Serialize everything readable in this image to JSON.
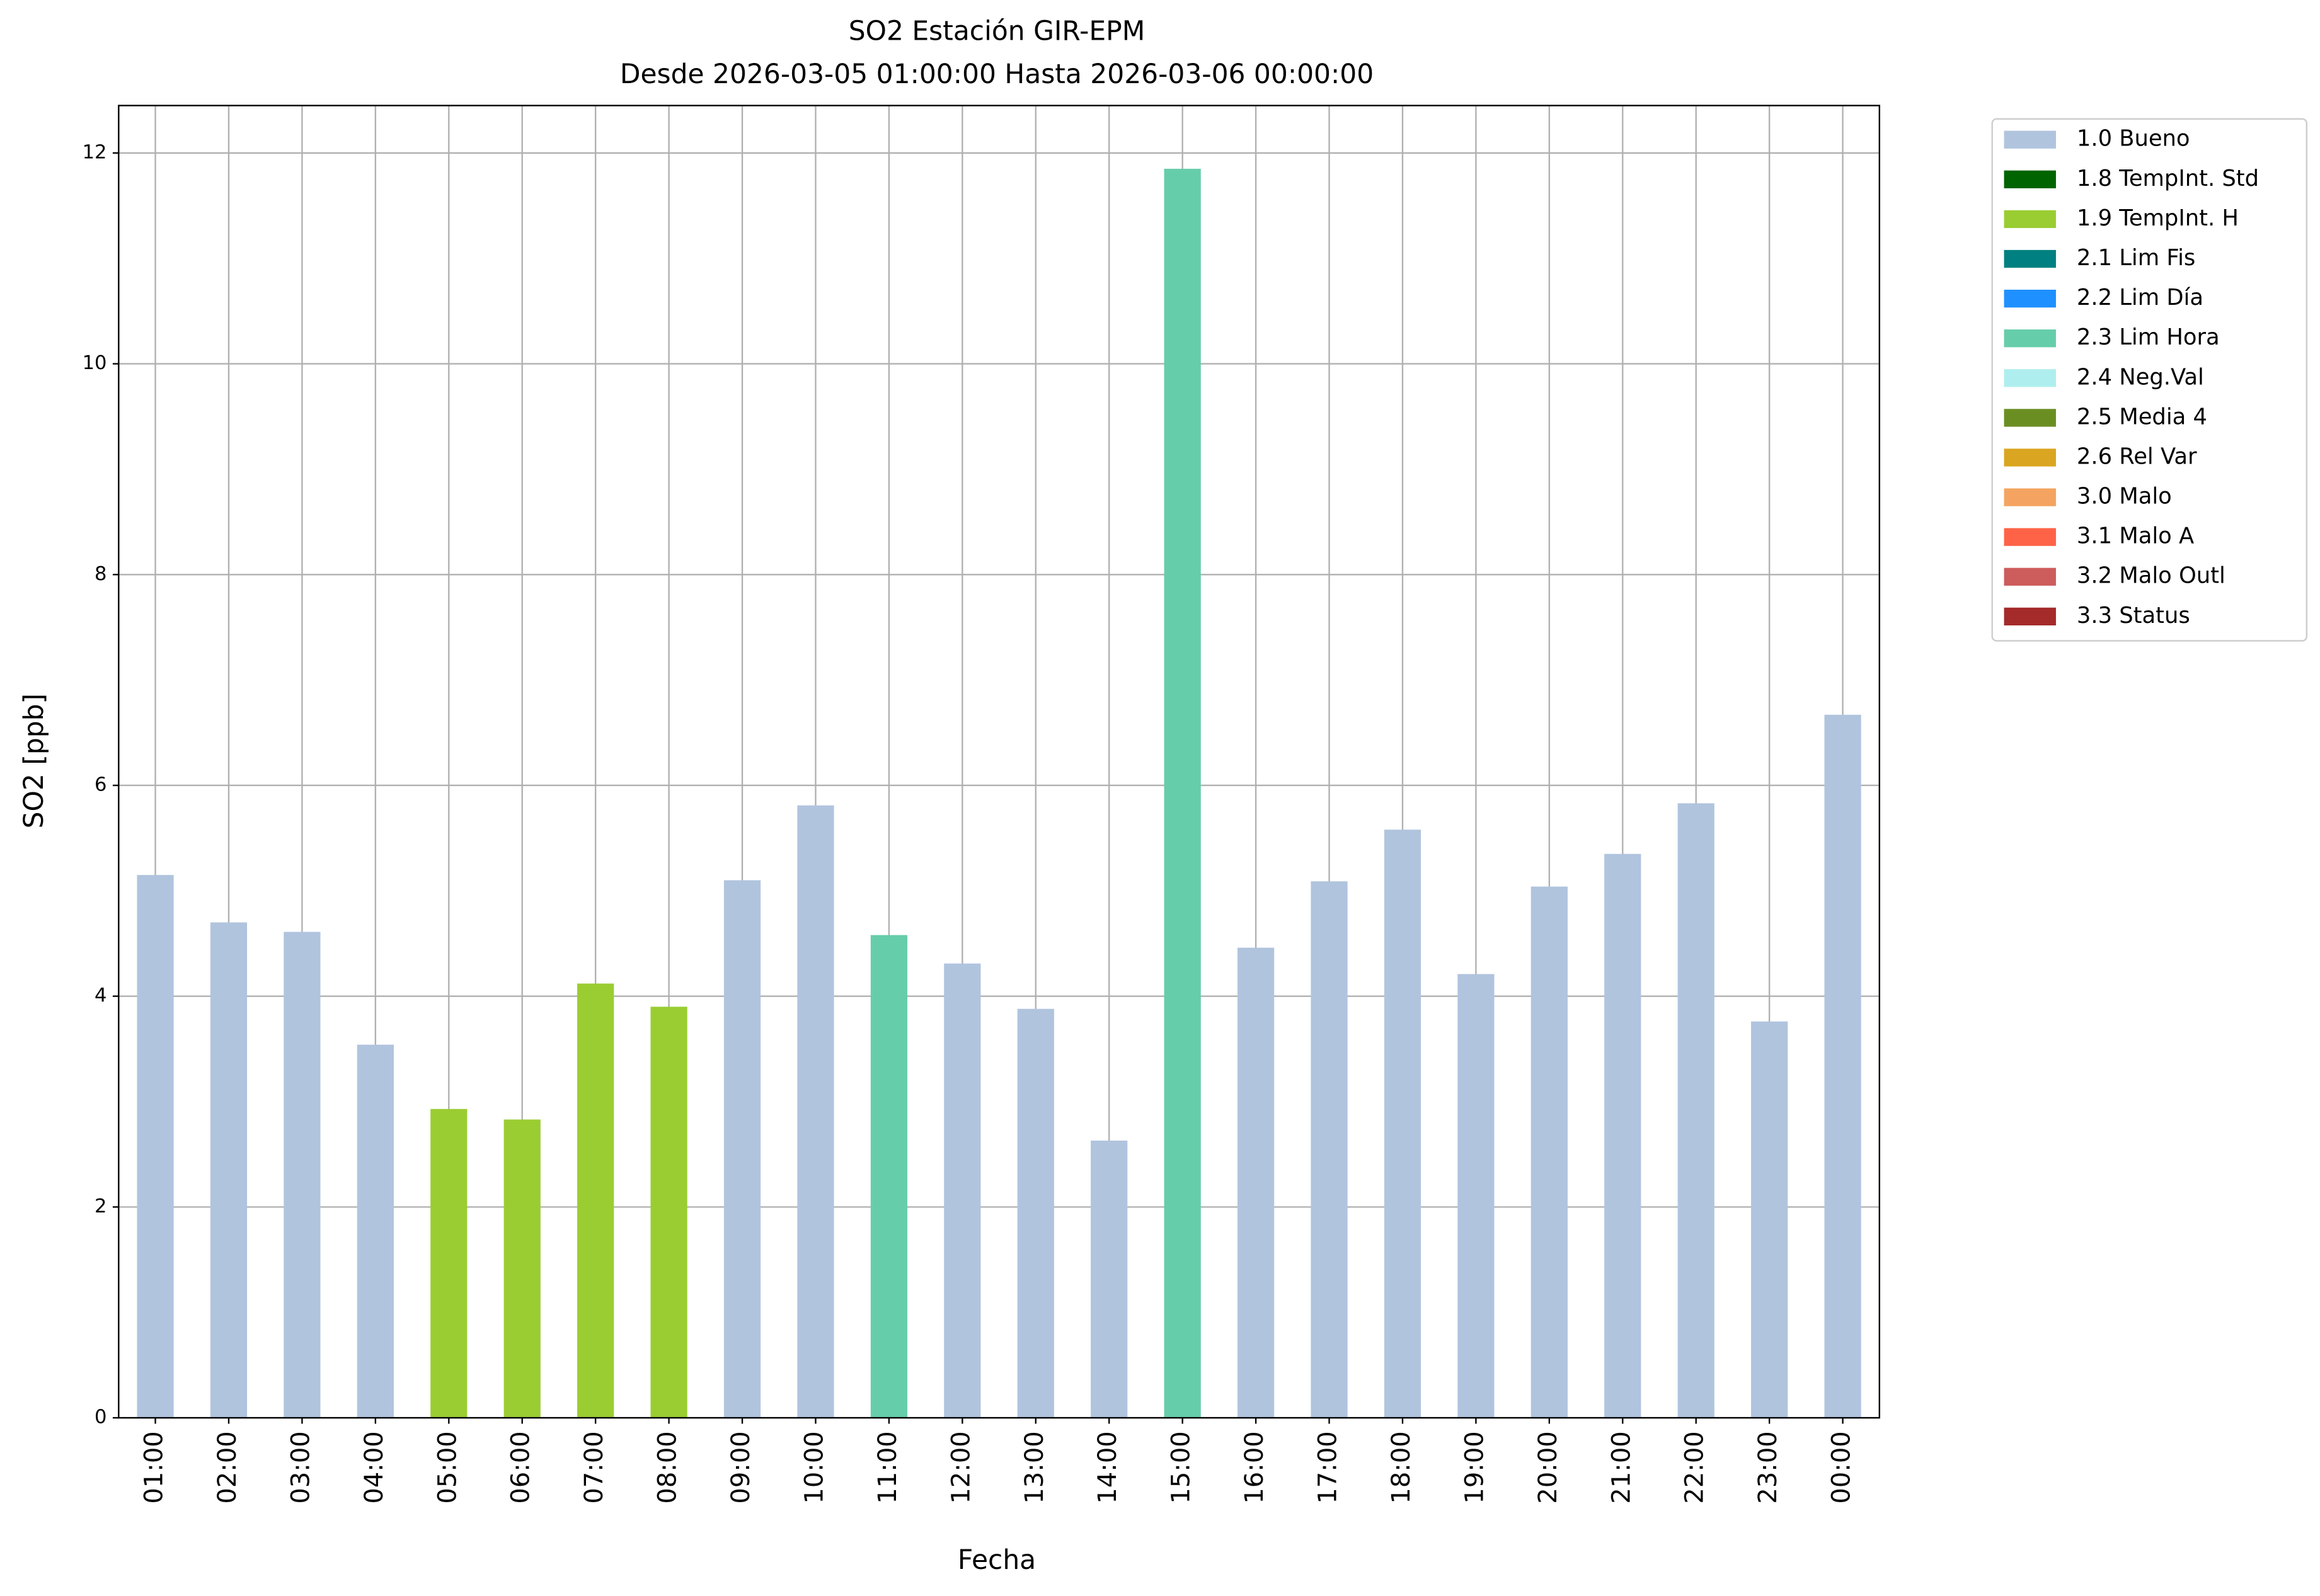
{
  "chart_data": {
    "type": "stacked-bar",
    "title": "SO2 Estación GIR-EPM",
    "subtitle": "Desde 2026-03-05 01:00:00 Hasta 2026-03-06 00:00:00",
    "x_label": "Fecha",
    "y_label": "SO2 [ppb]",
    "categories": [
      "01:00",
      "02:00",
      "03:00",
      "04:00",
      "05:00",
      "06:00",
      "07:00",
      "08:00",
      "09:00",
      "10:00",
      "11:00",
      "12:00",
      "13:00",
      "14:00",
      "15:00",
      "16:00",
      "17:00",
      "18:00",
      "19:00",
      "20:00",
      "21:00",
      "22:00",
      "23:00",
      "00:00"
    ],
    "ylim": [
      0,
      12.45
    ],
    "yticks": [
      0,
      2,
      4,
      6,
      8,
      10,
      12
    ],
    "grid": true,
    "legend_position": "outside-right",
    "series": [
      {
        "name": "1.0 Bueno",
        "color": "#b0c4de",
        "values": [
          5.15,
          4.7,
          4.61,
          3.54,
          null,
          null,
          null,
          null,
          5.1,
          5.81,
          null,
          4.31,
          3.88,
          2.63,
          null,
          4.46,
          5.09,
          5.58,
          4.21,
          5.04,
          5.35,
          5.83,
          3.76,
          6.67
        ]
      },
      {
        "name": "1.8 TempInt. Std",
        "color": "#006400",
        "values": [
          null,
          null,
          null,
          null,
          null,
          null,
          null,
          null,
          null,
          null,
          null,
          null,
          null,
          null,
          null,
          null,
          null,
          null,
          null,
          null,
          null,
          null,
          null,
          null
        ]
      },
      {
        "name": "1.9 TempInt. H",
        "color": "#9acd32",
        "values": [
          null,
          null,
          null,
          null,
          2.93,
          2.83,
          4.12,
          3.9,
          null,
          null,
          null,
          null,
          null,
          null,
          null,
          null,
          null,
          null,
          null,
          null,
          null,
          null,
          null,
          null
        ]
      },
      {
        "name": "2.1 Lim Fis",
        "color": "#008080",
        "values": [
          null,
          null,
          null,
          null,
          null,
          null,
          null,
          null,
          null,
          null,
          null,
          null,
          null,
          null,
          null,
          null,
          null,
          null,
          null,
          null,
          null,
          null,
          null,
          null
        ]
      },
      {
        "name": "2.2 Lim Día",
        "color": "#1e90ff",
        "values": [
          null,
          null,
          null,
          null,
          null,
          null,
          null,
          null,
          null,
          null,
          null,
          null,
          null,
          null,
          null,
          null,
          null,
          null,
          null,
          null,
          null,
          null,
          null,
          null
        ]
      },
      {
        "name": "2.3 Lim Hora",
        "color": "#66cdaa",
        "values": [
          null,
          null,
          null,
          null,
          null,
          null,
          null,
          null,
          null,
          null,
          4.58,
          null,
          null,
          null,
          11.85,
          null,
          null,
          null,
          null,
          null,
          null,
          null,
          null,
          null
        ]
      },
      {
        "name": "2.4 Neg.Val",
        "color": "#afeeee",
        "values": [
          null,
          null,
          null,
          null,
          null,
          null,
          null,
          null,
          null,
          null,
          null,
          null,
          null,
          null,
          null,
          null,
          null,
          null,
          null,
          null,
          null,
          null,
          null,
          null
        ]
      },
      {
        "name": "2.5 Media 4",
        "color": "#6b8e23",
        "values": [
          null,
          null,
          null,
          null,
          null,
          null,
          null,
          null,
          null,
          null,
          null,
          null,
          null,
          null,
          null,
          null,
          null,
          null,
          null,
          null,
          null,
          null,
          null,
          null
        ]
      },
      {
        "name": "2.6 Rel Var",
        "color": "#daa520",
        "values": [
          null,
          null,
          null,
          null,
          null,
          null,
          null,
          null,
          null,
          null,
          null,
          null,
          null,
          null,
          null,
          null,
          null,
          null,
          null,
          null,
          null,
          null,
          null,
          null
        ]
      },
      {
        "name": "3.0 Malo",
        "color": "#f4a460",
        "values": [
          null,
          null,
          null,
          null,
          null,
          null,
          null,
          null,
          null,
          null,
          null,
          null,
          null,
          null,
          null,
          null,
          null,
          null,
          null,
          null,
          null,
          null,
          null,
          null
        ]
      },
      {
        "name": "3.1 Malo A",
        "color": "#ff6347",
        "values": [
          null,
          null,
          null,
          null,
          null,
          null,
          null,
          null,
          null,
          null,
          null,
          null,
          null,
          null,
          null,
          null,
          null,
          null,
          null,
          null,
          null,
          null,
          null,
          null
        ]
      },
      {
        "name": "3.2 Malo Outl",
        "color": "#cd5c5c",
        "values": [
          null,
          null,
          null,
          null,
          null,
          null,
          null,
          null,
          null,
          null,
          null,
          null,
          null,
          null,
          null,
          null,
          null,
          null,
          null,
          null,
          null,
          null,
          null,
          null
        ]
      },
      {
        "name": "3.3 Status",
        "color": "#a52a2a",
        "values": [
          null,
          null,
          null,
          null,
          null,
          null,
          null,
          null,
          null,
          null,
          null,
          null,
          null,
          null,
          null,
          null,
          null,
          null,
          null,
          null,
          null,
          null,
          null,
          null
        ]
      }
    ]
  }
}
